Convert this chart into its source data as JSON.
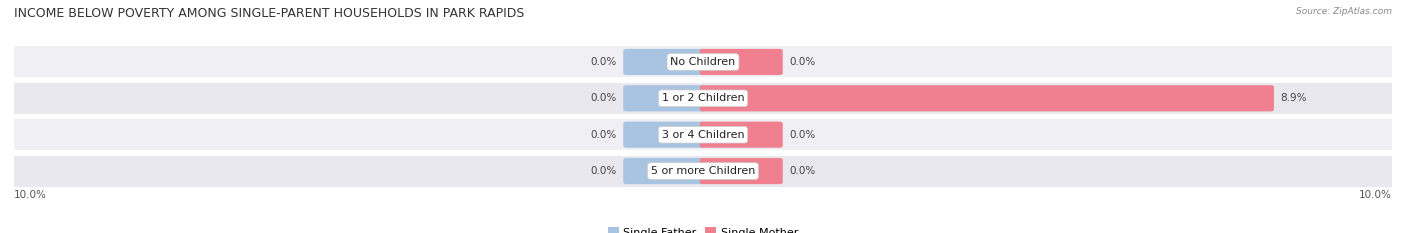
{
  "title": "INCOME BELOW POVERTY AMONG SINGLE-PARENT HOUSEHOLDS IN PARK RAPIDS",
  "source": "Source: ZipAtlas.com",
  "categories": [
    "No Children",
    "1 or 2 Children",
    "3 or 4 Children",
    "5 or more Children"
  ],
  "single_father": [
    0.0,
    0.0,
    0.0,
    0.0
  ],
  "single_mother": [
    0.0,
    8.9,
    0.0,
    0.0
  ],
  "max_val": 10.0,
  "stub_val": 1.2,
  "color_father": "#a8c4e0",
  "color_mother": "#f08090",
  "row_colors": [
    "#f0f0f4",
    "#e8e8ee",
    "#f0f0f4",
    "#e8e8ee"
  ],
  "title_fontsize": 9,
  "label_fontsize": 8,
  "value_fontsize": 7.5,
  "axis_label_fontsize": 7.5,
  "legend_fontsize": 8
}
